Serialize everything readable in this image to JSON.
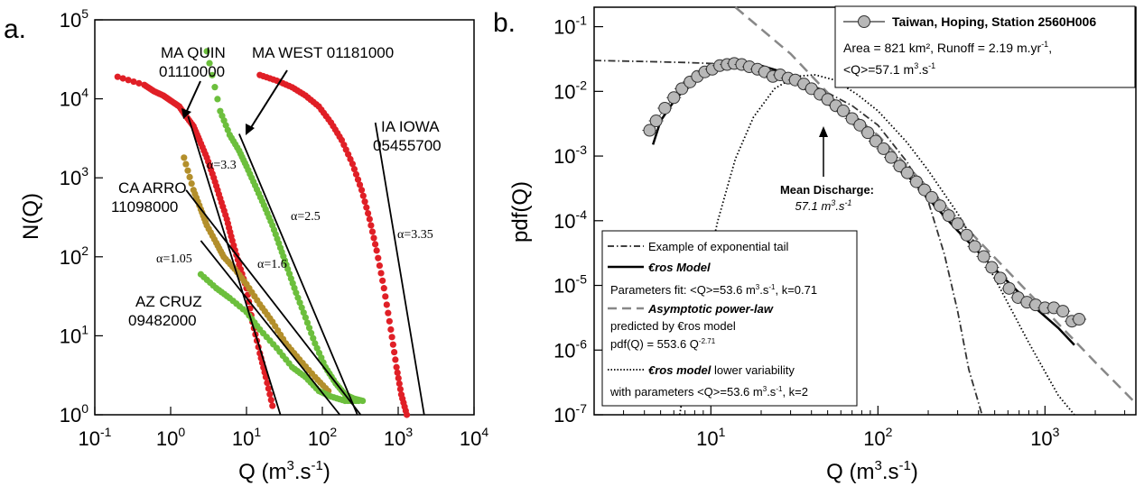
{
  "chart_data": [
    {
      "panel_label": "a.",
      "type": "scatter",
      "xlabel": "Q (m",
      "xlabel_sup": "3",
      "xlabel_tail": ".s",
      "xlabel_sup2": "-1",
      "xlabel_close": ")",
      "ylabel": "N(Q)",
      "x_scale": "log",
      "y_scale": "log",
      "xlim": [
        0.1,
        10000
      ],
      "ylim": [
        1,
        100000
      ],
      "x_ticks": [
        {
          "base": "10",
          "exp": "-1",
          "v": 0.1
        },
        {
          "base": "10",
          "exp": "0",
          "v": 1
        },
        {
          "base": "10",
          "exp": "1",
          "v": 10
        },
        {
          "base": "10",
          "exp": "2",
          "v": 100
        },
        {
          "base": "10",
          "exp": "3",
          "v": 1000
        },
        {
          "base": "10",
          "exp": "4",
          "v": 10000
        }
      ],
      "y_ticks": [
        {
          "base": "10",
          "exp": "0",
          "v": 1
        },
        {
          "base": "10",
          "exp": "1",
          "v": 10
        },
        {
          "base": "10",
          "exp": "2",
          "v": 100
        },
        {
          "base": "10",
          "exp": "3",
          "v": 1000
        },
        {
          "base": "10",
          "exp": "4",
          "v": 10000
        },
        {
          "base": "10",
          "exp": "5",
          "v": 100000
        }
      ],
      "grid": false,
      "series": [
        {
          "name": "MA QUIN 01110000",
          "color": "#e01f26",
          "x": [
            0.2,
            0.45,
            0.6,
            0.8,
            1.0,
            1.3,
            1.6,
            2.0,
            2.4,
            3.0,
            3.7,
            4.5,
            5.5,
            6.5,
            8.0,
            10,
            12,
            15,
            18,
            22
          ],
          "y": [
            19000,
            15000,
            12500,
            11000,
            9500,
            8000,
            6000,
            4500,
            3000,
            1800,
            1000,
            550,
            300,
            160,
            80,
            40,
            15,
            6,
            3,
            1.3
          ]
        },
        {
          "name": "MA WEST 01181000",
          "color": "#6cbf3d",
          "x": [
            3,
            4.5,
            6,
            8,
            10,
            13,
            17,
            22,
            28,
            35,
            45,
            60,
            80,
            110,
            150,
            200,
            260,
            340
          ],
          "y": [
            40000,
            7000,
            3500,
            2200,
            1400,
            800,
            450,
            250,
            130,
            70,
            35,
            17,
            8,
            4,
            2.5,
            1.8,
            1.6,
            1.5
          ]
        },
        {
          "name": "IA IOWA 05455700",
          "color": "#e01f26",
          "x": [
            15,
            25,
            40,
            60,
            90,
            130,
            180,
            250,
            330,
            420,
            520,
            650,
            800,
            950,
            1100,
            1300
          ],
          "y": [
            20000,
            17000,
            14000,
            11000,
            8000,
            5000,
            3000,
            1500,
            700,
            300,
            120,
            40,
            12,
            4,
            1.8,
            1.0
          ]
        },
        {
          "name": "CA ARRO 11098000",
          "color": "#b38f2b",
          "x": [
            1.5,
            2.0,
            2.5,
            3.0,
            4.0,
            5.0,
            7.0,
            10,
            15,
            22,
            33,
            50,
            80,
            120
          ],
          "y": [
            1800,
            700,
            400,
            250,
            150,
            100,
            70,
            45,
            25,
            15,
            8,
            5,
            3,
            2
          ]
        },
        {
          "name": "AZ CRUZ 09482000",
          "color": "#6cbf3d",
          "x": [
            2.5,
            4,
            6,
            10,
            15,
            25,
            40,
            60,
            90,
            130,
            200,
            300
          ],
          "y": [
            60,
            40,
            30,
            20,
            12,
            7,
            4,
            3,
            2,
            1.7,
            1.5,
            1.5
          ]
        }
      ],
      "fit_lines": [
        {
          "label": "α=3.3",
          "x": [
            1.7,
            28
          ],
          "y": [
            6000,
            1
          ]
        },
        {
          "label": "α=2.5",
          "x": [
            8,
            290
          ],
          "y": [
            3600,
            1
          ]
        },
        {
          "label": "α=3.35",
          "x": [
            500,
            2200
          ],
          "y": [
            5000,
            1
          ]
        },
        {
          "label": "α=1.05",
          "x": [
            1.6,
            320
          ],
          "y": [
            700,
            1
          ]
        },
        {
          "label": "α=1.6",
          "x": [
            2.5,
            170
          ],
          "y": [
            160,
            1
          ]
        }
      ],
      "annotations": [
        {
          "line1": "MA QUIN",
          "line2": "01110000"
        },
        {
          "line1": "MA WEST 01181000",
          "line2": ""
        },
        {
          "line1": "IA IOWA",
          "line2": "05455700"
        },
        {
          "line1": "CA ARRO",
          "line2": "11098000"
        },
        {
          "line1": "AZ CRUZ",
          "line2": "09482000"
        }
      ],
      "alpha_labels": [
        "α=3.3",
        "α=2.5",
        "α=3.35",
        "α=1.05",
        "α=1.6"
      ]
    },
    {
      "panel_label": "b.",
      "type": "scatter",
      "xlabel": "Q (m",
      "xlabel_sup": "3",
      "xlabel_tail": ".s",
      "xlabel_sup2": "-1",
      "xlabel_close": ")",
      "ylabel": "pdf(Q)",
      "x_scale": "log",
      "y_scale": "log",
      "xlim": [
        2,
        3500
      ],
      "ylim": [
        1e-07,
        0.2
      ],
      "x_ticks": [
        {
          "base": "10",
          "exp": "1",
          "v": 10
        },
        {
          "base": "10",
          "exp": "2",
          "v": 100
        },
        {
          "base": "10",
          "exp": "3",
          "v": 1000
        }
      ],
      "y_ticks": [
        {
          "base": "10",
          "exp": "-7",
          "v": 1e-07
        },
        {
          "base": "10",
          "exp": "-6",
          "v": 1e-06
        },
        {
          "base": "10",
          "exp": "-5",
          "v": 1e-05
        },
        {
          "base": "10",
          "exp": "-4",
          "v": 0.0001
        },
        {
          "base": "10",
          "exp": "-3",
          "v": 0.001
        },
        {
          "base": "10",
          "exp": "-2",
          "v": 0.01
        },
        {
          "base": "10",
          "exp": "-1",
          "v": 0.1
        }
      ],
      "grid": false,
      "data_series": {
        "name": "Taiwan, Hoping, Station 2560H006",
        "x": [
          4.3,
          4.7,
          5.3,
          6.0,
          6.7,
          7.5,
          8.3,
          9.2,
          10.2,
          11.3,
          12.5,
          13.8,
          15.3,
          17,
          19,
          21,
          23.5,
          26,
          29,
          32,
          36,
          40,
          45,
          50,
          56,
          62,
          70,
          78,
          87,
          97,
          108,
          120,
          135,
          150,
          170,
          190,
          210,
          235,
          265,
          300,
          340,
          380,
          430,
          480,
          540,
          610,
          690,
          780,
          880,
          1000,
          1130,
          1280,
          1450,
          1600
        ],
        "y": [
          0.0025,
          0.0035,
          0.0055,
          0.008,
          0.011,
          0.014,
          0.017,
          0.02,
          0.022,
          0.025,
          0.026,
          0.027,
          0.026,
          0.024,
          0.022,
          0.02,
          0.017,
          0.018,
          0.016,
          0.015,
          0.013,
          0.011,
          0.009,
          0.0075,
          0.006,
          0.005,
          0.0038,
          0.003,
          0.0023,
          0.0017,
          0.0013,
          0.00095,
          0.0007,
          0.00055,
          0.0004,
          0.0003,
          0.00023,
          0.00017,
          0.00012,
          9e-05,
          6e-05,
          4e-05,
          2.8e-05,
          1.9e-05,
          1.3e-05,
          9e-06,
          6.5e-06,
          5.5e-06,
          5e-06,
          4.5e-06,
          4.5e-06,
          4e-06,
          2.8e-06,
          3e-06
        ]
      },
      "curves": [
        {
          "name": "Example of exponential tail",
          "style": "dash-dot",
          "x": [
            2,
            4,
            7,
            10,
            14,
            20,
            30,
            45,
            70,
            100,
            150,
            200,
            250,
            300,
            350,
            420
          ],
          "y": [
            0.03,
            0.029,
            0.028,
            0.027,
            0.026,
            0.022,
            0.017,
            0.011,
            0.006,
            0.003,
            0.0008,
            0.0002,
            3e-05,
            4e-06,
            5e-07,
            1e-07
          ]
        },
        {
          "name": "€ros Model",
          "style": "solid",
          "x": [
            4.5,
            5,
            6,
            7,
            8,
            10,
            12,
            14,
            16,
            20,
            25,
            32,
            40,
            50,
            70,
            100,
            150,
            200,
            300,
            500,
            800,
            1200,
            1500
          ],
          "y": [
            0.0015,
            0.0035,
            0.007,
            0.011,
            0.015,
            0.022,
            0.026,
            0.027,
            0.027,
            0.025,
            0.021,
            0.016,
            0.012,
            0.008,
            0.0038,
            0.0015,
            0.0005,
            0.00022,
            7e-05,
            1.8e-05,
            5.5e-06,
            2.2e-06,
            1.2e-06
          ]
        },
        {
          "name": "Asymptotic power-law",
          "style": "dashed",
          "x": [
            14,
            30,
            60,
            100,
            200,
            500,
            1000,
            2000,
            3500
          ],
          "y": [
            0.4,
            0.038,
            0.0058,
            0.0021,
            0.00032,
            2.7e-05,
            4.2e-06,
            6.5e-07,
            1.5e-07
          ]
        },
        {
          "name": "€ros model lower variability",
          "style": "dotted",
          "x": [
            6.5,
            7.5,
            9,
            11,
            14,
            18,
            24,
            32,
            42,
            55,
            75,
            100,
            150,
            200,
            300,
            500,
            800,
            1200,
            1500
          ],
          "y": [
            1e-07,
            8e-07,
            1e-05,
            0.0001,
            0.0009,
            0.004,
            0.011,
            0.017,
            0.018,
            0.015,
            0.009,
            0.005,
            0.0016,
            0.0006,
            0.00013,
            1.3e-05,
            1.3e-06,
            2e-07,
            8e-08
          ]
        }
      ],
      "mean_discharge": {
        "x": 57.1,
        "label": "Mean Discharge:",
        "value": "57.1 m",
        "value_sup": "3",
        "value_tail": ".s",
        "value_sup2": "-1"
      },
      "info_box": {
        "title": "Taiwan, Hoping, Station 2560H006",
        "line1_a": "Area = 821 km²,  Runoff = 2.19 m.yr",
        "line1_sup": "-1",
        "line1_b": ",",
        "line2_a": "<Q>=57.1 m",
        "line2_sup": "3",
        "line2_b": ".s",
        "line2_sup2": "-1"
      },
      "legend": {
        "exp_tail": "Example of exponential tail",
        "eros_model": "€ros Model",
        "params_a": "Parameters fit: <Q>=53.6 m",
        "params_sup": "3",
        "params_b": ".s",
        "params_sup2": "-1",
        "params_c": ", k=0.71",
        "asym": "Asymptotic power-law",
        "predicted": "predicted by €ros model",
        "pdf_a": "pdf(Q) = 553.6 Q",
        "pdf_sup": "-2.71",
        "lowvar_a": "€ros model",
        "lowvar_b": " lower variability",
        "with_a": "with parameters <Q>=53.6 m",
        "with_sup": "3",
        "with_b": ".s",
        "with_sup2": "-1",
        "with_c": ", k=2"
      }
    }
  ]
}
